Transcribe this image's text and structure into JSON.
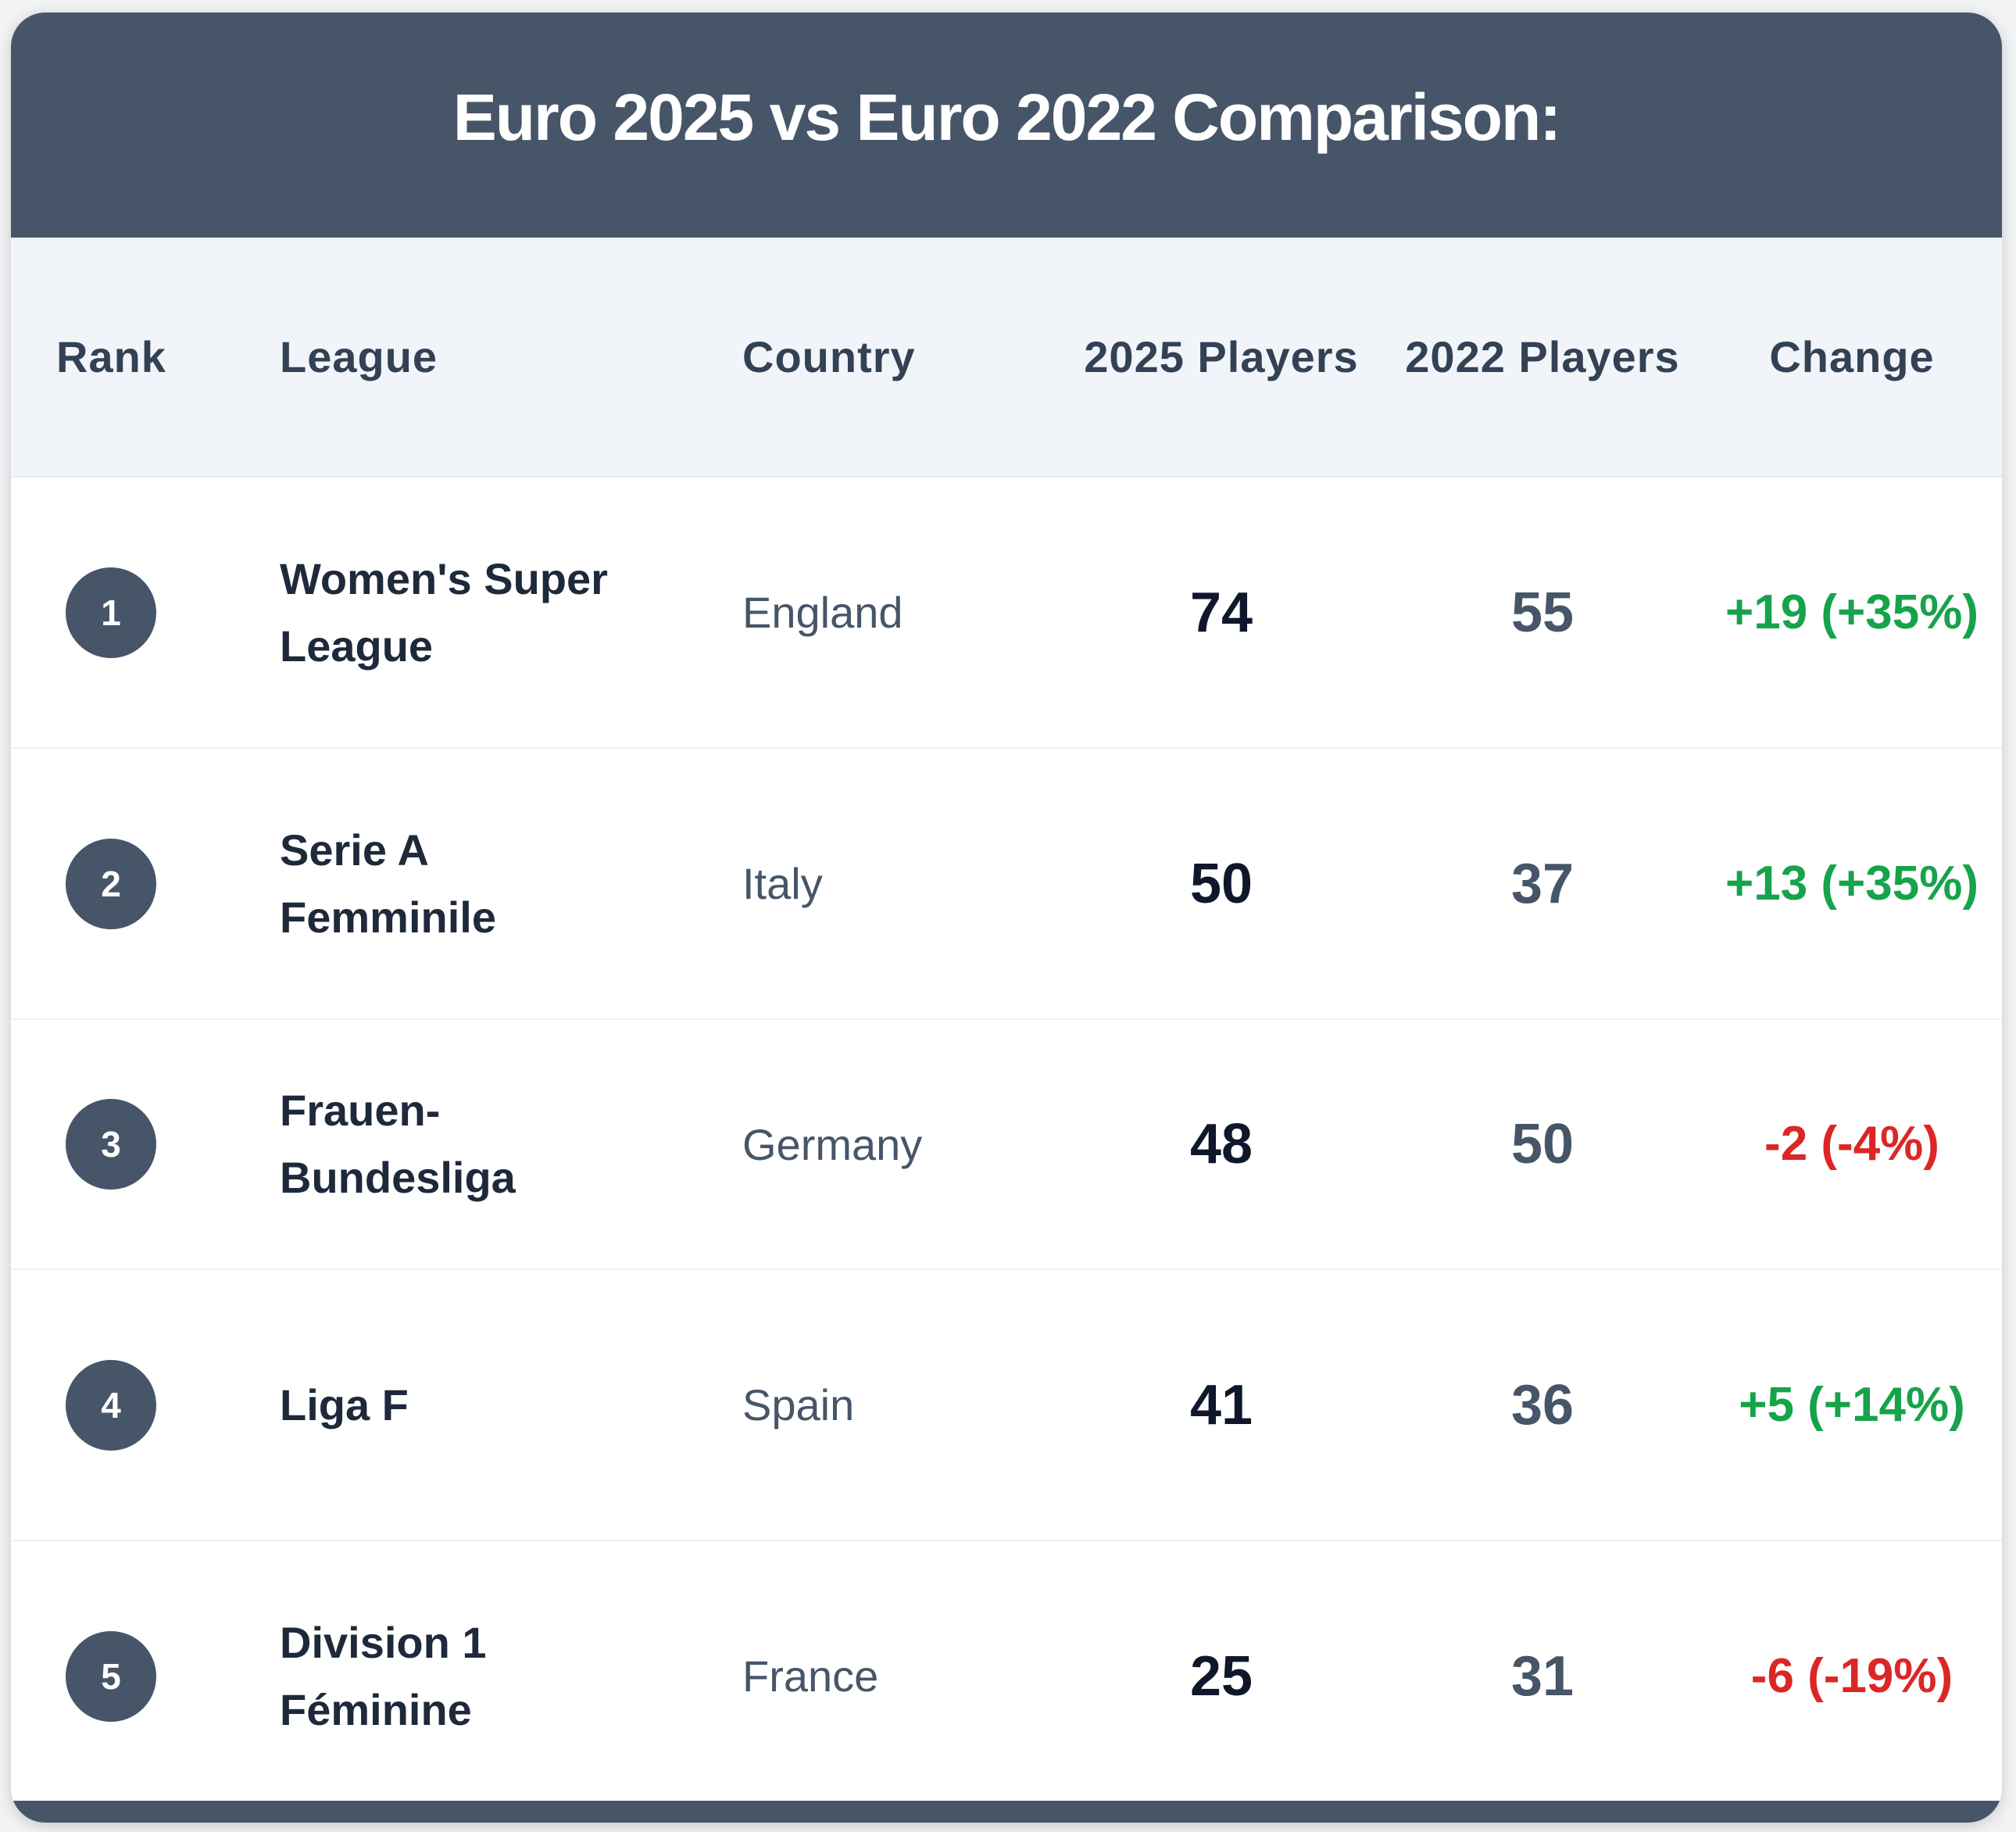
{
  "title": "Euro 2025 vs Euro 2022 Comparison:",
  "columns": {
    "rank": "Rank",
    "league": "League",
    "country": "Country",
    "players_2025": "2025 Players",
    "players_2022": "2022 Players",
    "change": "Change"
  },
  "rows": [
    {
      "rank": "1",
      "league": "Women's Super League",
      "country": "England",
      "players_2025": "74",
      "players_2022": "55",
      "change": "+19 (+35%)",
      "trend": "up"
    },
    {
      "rank": "2",
      "league": "Serie A Femminile",
      "country": "Italy",
      "players_2025": "50",
      "players_2022": "37",
      "change": "+13 (+35%)",
      "trend": "up"
    },
    {
      "rank": "3",
      "league": "Frauen-Bundesliga",
      "country": "Germany",
      "players_2025": "48",
      "players_2022": "50",
      "change": "-2 (-4%)",
      "trend": "down"
    },
    {
      "rank": "4",
      "league": "Liga F",
      "country": "Spain",
      "players_2025": "41",
      "players_2022": "36",
      "change": "+5 (+14%)",
      "trend": "up"
    },
    {
      "rank": "5",
      "league": "Division 1 Féminine",
      "country": "France",
      "players_2025": "25",
      "players_2022": "31",
      "change": "-6 (-19%)",
      "trend": "down"
    }
  ],
  "colors": {
    "header_bg": "#475569",
    "positive": "#16a34a",
    "negative": "#dc2626"
  }
}
